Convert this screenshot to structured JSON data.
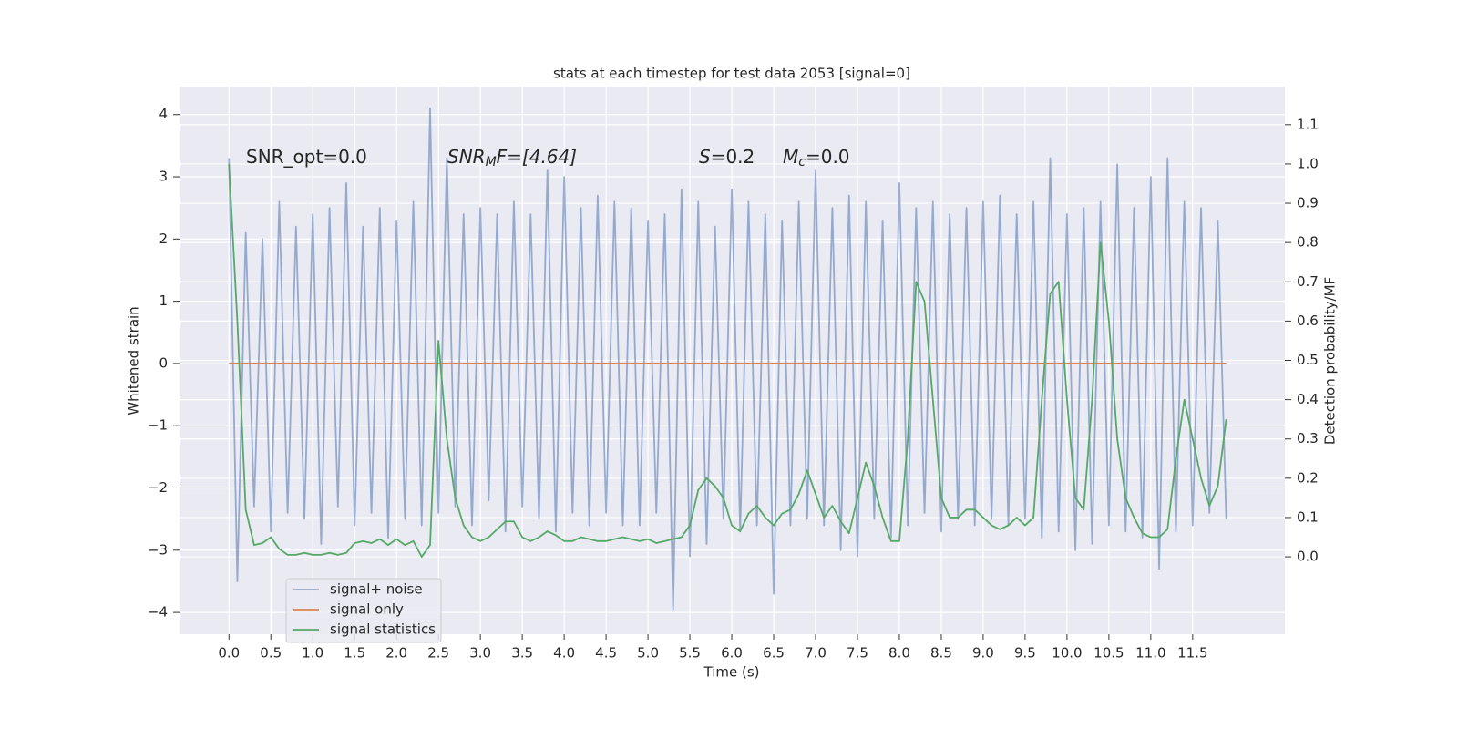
{
  "chart_data": {
    "type": "line",
    "title": "stats at each timestep for test data 2053 [signal=0]",
    "x_label": "Time (s)",
    "y_label": "Whitened strain",
    "y2_label": "Detection probability/MF",
    "annotations": [
      {
        "text": "SNR_opt=0.0"
      },
      {
        "base": "SNR",
        "sub": "M",
        "text": "F=[4.64]"
      },
      {
        "base": "S",
        "text": "=0.2"
      },
      {
        "base": "M",
        "sub": "c",
        "text": "=0.0"
      }
    ],
    "grid": true,
    "legend": "lower left",
    "xlim": [
      -0.59,
      12.6
    ],
    "ylim": [
      -4.35,
      4.45
    ],
    "y2lim": [
      -0.197,
      1.197
    ],
    "xticks": [
      {
        "value": 0,
        "label": "0.0"
      },
      {
        "value": 0.5,
        "label": "0.5"
      },
      {
        "value": 1,
        "label": "1.0"
      },
      {
        "value": 1.5,
        "label": "1.5"
      },
      {
        "value": 2,
        "label": "2.0"
      },
      {
        "value": 2.5,
        "label": "2.5"
      },
      {
        "value": 3,
        "label": "3.0"
      },
      {
        "value": 3.5,
        "label": "3.5"
      },
      {
        "value": 4,
        "label": "4.0"
      },
      {
        "value": 4.5,
        "label": "4.5"
      },
      {
        "value": 5,
        "label": "5.0"
      },
      {
        "value": 5.5,
        "label": "5.5"
      },
      {
        "value": 6,
        "label": "6.0"
      },
      {
        "value": 6.5,
        "label": "6.5"
      },
      {
        "value": 7,
        "label": "7.0"
      },
      {
        "value": 7.5,
        "label": "7.5"
      },
      {
        "value": 8,
        "label": "8.0"
      },
      {
        "value": 8.5,
        "label": "8.5"
      },
      {
        "value": 9,
        "label": "9.0"
      },
      {
        "value": 9.5,
        "label": "9.5"
      },
      {
        "value": 10,
        "label": "10.0"
      },
      {
        "value": 10.5,
        "label": "10.5"
      },
      {
        "value": 11,
        "label": "11.0"
      },
      {
        "value": 11.5,
        "label": "11.5"
      }
    ],
    "yticks": [
      {
        "value": -4,
        "label": "−4"
      },
      {
        "value": -3,
        "label": "−3"
      },
      {
        "value": -2,
        "label": "−2"
      },
      {
        "value": -1,
        "label": "−1"
      },
      0,
      1,
      2,
      3,
      4
    ],
    "y2ticks": [
      {
        "value": 0,
        "label": "0.0"
      },
      {
        "value": 0.1,
        "label": "0.1"
      },
      {
        "value": 0.2,
        "label": "0.2"
      },
      {
        "value": 0.3,
        "label": "0.3"
      },
      {
        "value": 0.4,
        "label": "0.4"
      },
      {
        "value": 0.5,
        "label": "0.5"
      },
      {
        "value": 0.6,
        "label": "0.6"
      },
      {
        "value": 0.7,
        "label": "0.7"
      },
      {
        "value": 0.8,
        "label": "0.8"
      },
      {
        "value": 0.9,
        "label": "0.9"
      },
      {
        "value": 1,
        "label": "1.0"
      },
      {
        "value": 1.1,
        "label": "1.1"
      }
    ],
    "x": [
      0,
      0.1,
      0.2,
      0.3,
      0.4,
      0.5,
      0.6,
      0.7,
      0.8,
      0.9,
      1,
      1.1,
      1.2,
      1.3,
      1.4,
      1.5,
      1.6,
      1.7,
      1.8,
      1.9,
      2,
      2.1,
      2.2,
      2.3,
      2.4,
      2.5,
      2.6,
      2.7,
      2.8,
      2.9,
      3,
      3.1,
      3.2,
      3.3,
      3.4,
      3.5,
      3.6,
      3.7,
      3.8,
      3.9,
      4,
      4.1,
      4.2,
      4.3,
      4.4,
      4.5,
      4.6,
      4.7,
      4.8,
      4.9,
      5,
      5.1,
      5.2,
      5.3,
      5.4,
      5.5,
      5.6,
      5.7,
      5.8,
      5.9,
      6,
      6.1,
      6.2,
      6.3,
      6.4,
      6.5,
      6.6,
      6.7,
      6.8,
      6.9,
      7,
      7.1,
      7.2,
      7.3,
      7.4,
      7.5,
      7.6,
      7.7,
      7.8,
      7.9,
      8,
      8.1,
      8.2,
      8.3,
      8.4,
      8.5,
      8.6,
      8.7,
      8.8,
      8.9,
      9,
      9.1,
      9.2,
      9.3,
      9.4,
      9.5,
      9.6,
      9.7,
      9.8,
      9.9,
      10,
      10.1,
      10.2,
      10.3,
      10.4,
      10.5,
      10.6,
      10.7,
      10.8,
      10.9,
      11,
      11.1,
      11.2,
      11.3,
      11.4,
      11.5,
      11.6,
      11.7,
      11.8,
      11.9
    ],
    "series": [
      {
        "name": "signal+ noise",
        "color": "#4c72b0",
        "values": [
          3.3,
          -3.5,
          2.1,
          -2.3,
          2.0,
          -2.7,
          2.6,
          -2.4,
          2.2,
          -2.5,
          2.4,
          -2.9,
          2.5,
          -2.3,
          2.9,
          -2.6,
          2.2,
          -2.4,
          2.5,
          -2.8,
          2.3,
          -2.5,
          2.6,
          -2.6,
          4.1,
          -2.4,
          3.3,
          -2.3,
          2.4,
          -2.6,
          2.5,
          -2.2,
          2.4,
          -2.7,
          2.6,
          -2.3,
          2.4,
          -2.5,
          3.1,
          -2.7,
          3.0,
          -2.4,
          2.5,
          -2.6,
          2.7,
          -2.4,
          2.6,
          -2.6,
          2.5,
          -2.6,
          2.3,
          -2.4,
          2.4,
          -3.95,
          2.8,
          -3.1,
          2.6,
          -2.9,
          2.2,
          -2.5,
          2.8,
          -2.7,
          2.6,
          -2.6,
          2.4,
          -3.7,
          2.3,
          -2.6,
          2.6,
          -2.5,
          3.1,
          -2.6,
          2.5,
          -3.0,
          2.7,
          -3.1,
          2.6,
          -2.5,
          2.3,
          -2.8,
          2.9,
          -2.6,
          2.5,
          -2.4,
          2.6,
          -2.7,
          2.4,
          -2.5,
          2.5,
          -2.6,
          2.6,
          -2.5,
          2.7,
          -2.6,
          2.4,
          -2.5,
          2.6,
          -2.8,
          3.3,
          -2.7,
          2.4,
          -3.0,
          2.5,
          -2.9,
          2.6,
          -2.6,
          3.2,
          -2.7,
          2.5,
          -2.8,
          3.0,
          -3.3,
          3.3,
          -2.7,
          2.6,
          -2.6,
          2.5,
          -2.4,
          2.3,
          -2.5
        ]
      },
      {
        "name": "signal only",
        "color": "#dd8452",
        "values": [
          0,
          0,
          0,
          0,
          0,
          0,
          0,
          0,
          0,
          0,
          0,
          0,
          0,
          0,
          0,
          0,
          0,
          0,
          0,
          0,
          0,
          0,
          0,
          0,
          0,
          0,
          0,
          0,
          0,
          0,
          0,
          0,
          0,
          0,
          0,
          0,
          0,
          0,
          0,
          0,
          0,
          0,
          0,
          0,
          0,
          0,
          0,
          0,
          0,
          0,
          0,
          0,
          0,
          0,
          0,
          0,
          0,
          0,
          0,
          0,
          0,
          0,
          0,
          0,
          0,
          0,
          0,
          0,
          0,
          0,
          0,
          0,
          0,
          0,
          0,
          0,
          0,
          0,
          0,
          0,
          0,
          0,
          0,
          0,
          0,
          0,
          0,
          0,
          0,
          0,
          0,
          0,
          0,
          0,
          0,
          0,
          0,
          0,
          0,
          0,
          0,
          0,
          0,
          0,
          0,
          0,
          0,
          0,
          0,
          0,
          0,
          0,
          0,
          0,
          0,
          0,
          0,
          0,
          0,
          0
        ]
      },
      {
        "name": "signal statistics",
        "color": "#55a868",
        "axis": "y2",
        "values": [
          1.0,
          0.6,
          0.12,
          0.03,
          0.035,
          0.05,
          0.02,
          0.005,
          0.005,
          0.01,
          0.005,
          0.005,
          0.01,
          0.005,
          0.01,
          0.035,
          0.04,
          0.035,
          0.045,
          0.03,
          0.045,
          0.03,
          0.04,
          0.0,
          0.03,
          0.55,
          0.3,
          0.15,
          0.08,
          0.05,
          0.04,
          0.05,
          0.07,
          0.09,
          0.09,
          0.05,
          0.04,
          0.05,
          0.065,
          0.055,
          0.04,
          0.04,
          0.05,
          0.045,
          0.04,
          0.04,
          0.045,
          0.05,
          0.045,
          0.04,
          0.045,
          0.035,
          0.04,
          0.045,
          0.05,
          0.08,
          0.17,
          0.2,
          0.18,
          0.15,
          0.08,
          0.065,
          0.11,
          0.13,
          0.1,
          0.08,
          0.11,
          0.12,
          0.16,
          0.22,
          0.16,
          0.1,
          0.13,
          0.09,
          0.06,
          0.15,
          0.24,
          0.18,
          0.1,
          0.04,
          0.04,
          0.3,
          0.7,
          0.65,
          0.4,
          0.15,
          0.1,
          0.1,
          0.12,
          0.12,
          0.1,
          0.08,
          0.07,
          0.08,
          0.1,
          0.08,
          0.1,
          0.4,
          0.67,
          0.7,
          0.4,
          0.15,
          0.12,
          0.4,
          0.8,
          0.6,
          0.3,
          0.15,
          0.1,
          0.06,
          0.05,
          0.05,
          0.07,
          0.25,
          0.4,
          0.3,
          0.2,
          0.13,
          0.18,
          0.35
        ]
      }
    ]
  }
}
